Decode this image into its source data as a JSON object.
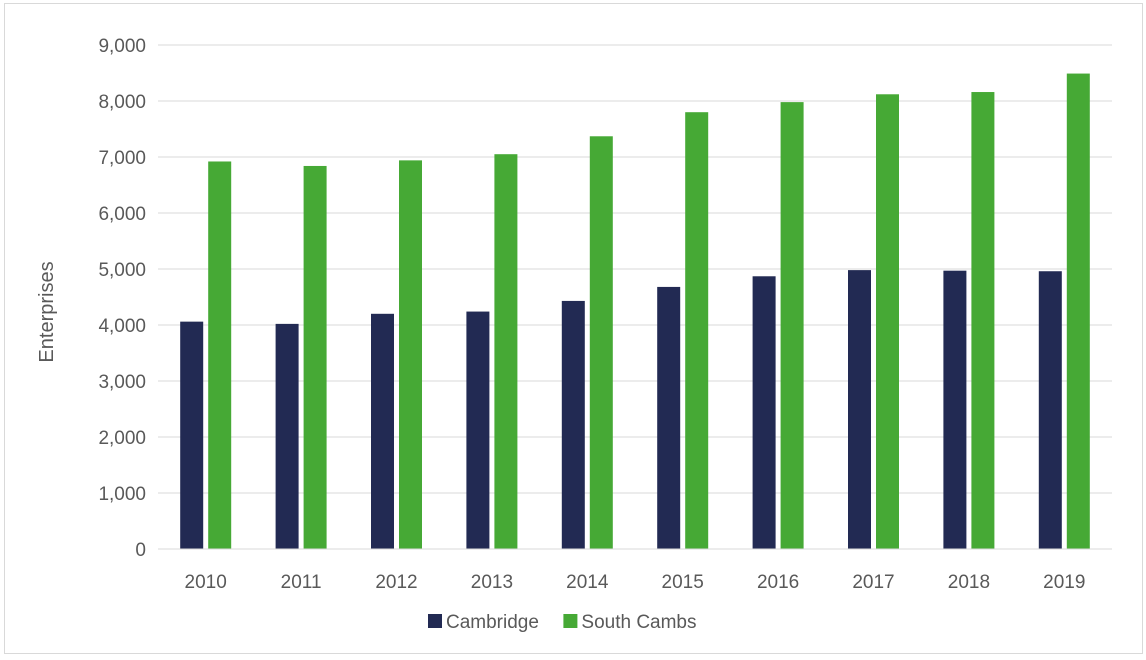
{
  "chart_data": {
    "type": "bar",
    "title": "",
    "xlabel": "",
    "ylabel": "Enterprises",
    "categories": [
      "2010",
      "2011",
      "2012",
      "2013",
      "2014",
      "2015",
      "2016",
      "2017",
      "2018",
      "2019"
    ],
    "series": [
      {
        "name": "Cambridge",
        "color": "#222a53",
        "values": [
          4060,
          4020,
          4200,
          4240,
          4430,
          4680,
          4870,
          4980,
          4970,
          4960
        ]
      },
      {
        "name": "South Cambs",
        "color": "#46a935",
        "values": [
          6920,
          6840,
          6940,
          7050,
          7370,
          7800,
          7980,
          8120,
          8160,
          8490
        ]
      }
    ],
    "ylim": [
      0,
      9000
    ],
    "yticks": [
      "0",
      "1,000",
      "2,000",
      "3,000",
      "4,000",
      "5,000",
      "6,000",
      "7,000",
      "8,000",
      "9,000"
    ],
    "grid": true,
    "legend_position": "bottom"
  }
}
